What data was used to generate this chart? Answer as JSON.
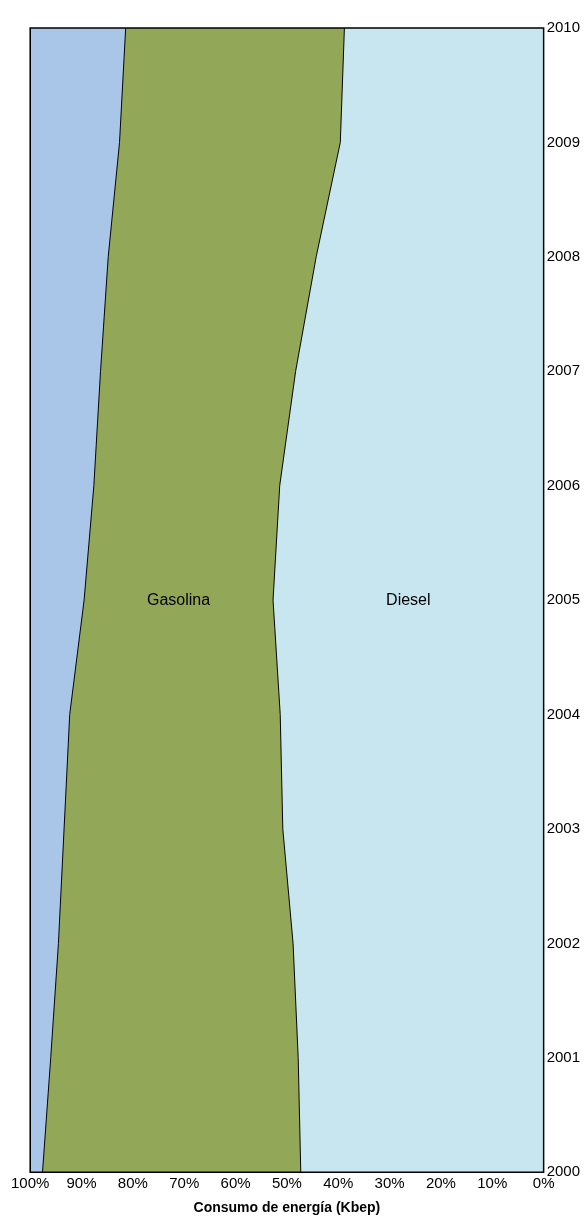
{
  "chart_data": {
    "type": "area",
    "stacked": true,
    "orientation": "horizontal",
    "xlabel": "Consumo de energía (Kbep)",
    "categories": [
      "2010",
      "2009",
      "2008",
      "2007",
      "2006",
      "2005",
      "2004",
      "2003",
      "2002",
      "2001",
      "2000"
    ],
    "xlim": [
      100,
      0
    ],
    "xticks": [
      {
        "value": 100,
        "label": "100%"
      },
      {
        "value": 90,
        "label": "90%"
      },
      {
        "value": 80,
        "label": "80%"
      },
      {
        "value": 70,
        "label": "70%"
      },
      {
        "value": 60,
        "label": "60%"
      },
      {
        "value": 50,
        "label": "50%"
      },
      {
        "value": 40,
        "label": "40%"
      },
      {
        "value": 30,
        "label": "30%"
      },
      {
        "value": 20,
        "label": "20%"
      },
      {
        "value": 10,
        "label": "10%"
      },
      {
        "value": 0,
        "label": "0%"
      }
    ],
    "legend": false,
    "series": [
      {
        "name": "Diesel",
        "color": "#c8e6ef",
        "values": [
          38.8,
          39.6,
          44.3,
          48.3,
          51.4,
          52.7,
          51.3,
          50.8,
          48.8,
          47.8,
          47.3
        ]
      },
      {
        "name": "Gasolina",
        "color": "#93a759",
        "values": [
          42.6,
          43.0,
          40.5,
          38.0,
          36.2,
          36.8,
          41.0,
          42.6,
          45.7,
          48.2,
          50.3
        ]
      },
      {
        "color": "#a9c6e8",
        "values": [
          18.6,
          17.4,
          15.2,
          13.7,
          12.4,
          10.5,
          7.7,
          6.6,
          5.5,
          4.0,
          2.4
        ]
      }
    ]
  }
}
